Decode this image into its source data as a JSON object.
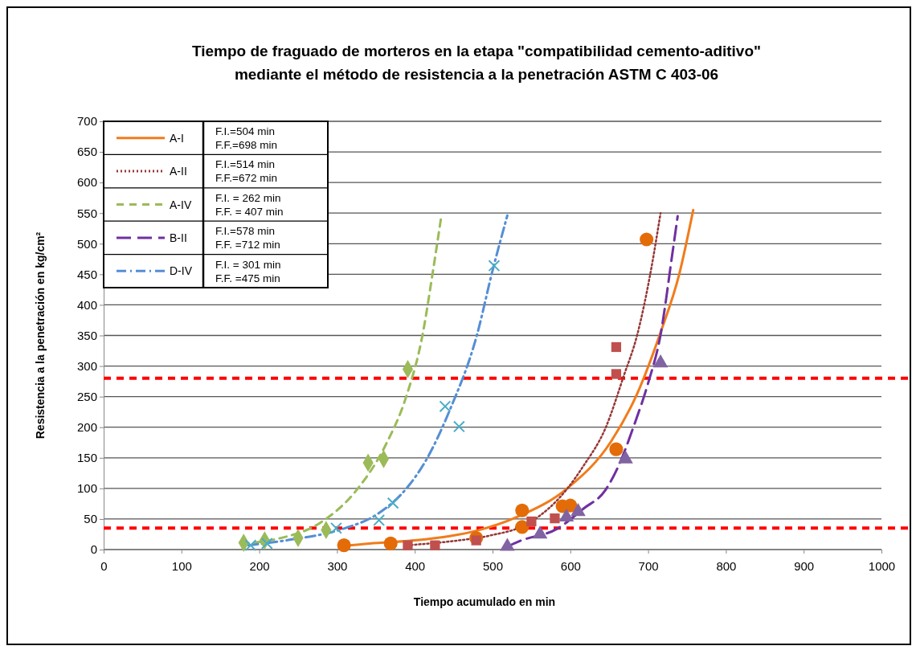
{
  "chart_data": {
    "type": "scatter",
    "title": "Tiempo de fraguado de morteros en la etapa \"compatibilidad cemento-aditivo\"\nmediante el método de resistencia a la penetración ASTM C 403-06",
    "xlabel": "Tiempo acumulado  en min",
    "ylabel": "Resistencia a la penetración en kg/cm²",
    "xlim": [
      0,
      1000
    ],
    "xticks": [
      0,
      100,
      200,
      300,
      400,
      500,
      600,
      700,
      800,
      900,
      1000
    ],
    "ylim": [
      0,
      700
    ],
    "yticks": [
      0,
      50,
      100,
      150,
      200,
      250,
      300,
      350,
      400,
      450,
      500,
      550,
      600,
      650,
      700
    ],
    "grid": "y",
    "legend": "top left",
    "annotations": [
      "F.I.=504 min\nF.F.=698 min",
      "F.I.=514 min\nF.F.=672 min",
      "F.I. = 262 min\nF.F. = 407 min",
      "F.I.=578 min\nF.F. =712 min",
      "F.I. = 301 min\nF.F. =475 min"
    ],
    "ref_lines": [
      {
        "axis": "y",
        "value": 280,
        "color": "#ff0000",
        "line_style": "dashed"
      },
      {
        "axis": "y",
        "value": 35,
        "color": "#ff0000",
        "line_style": "dashed"
      }
    ],
    "series": [
      {
        "name": "A-I",
        "type": "line",
        "line_style": "solid",
        "color": "#f07c1c",
        "x": [
          309,
          342,
          400,
          445,
          480,
          531,
          597,
          652,
          686,
          716,
          740,
          758
        ],
        "values": [
          6,
          10,
          15,
          22,
          31,
          53,
          101,
          176,
          255,
          355,
          450,
          555
        ]
      },
      {
        "name": "A-II",
        "type": "line",
        "line_style": "dotted",
        "color": "#953735",
        "x": [
          390,
          450,
          497,
          549,
          597,
          617,
          645,
          669,
          686,
          703,
          716
        ],
        "values": [
          7,
          14,
          23,
          45,
          101,
          137,
          198,
          285,
          351,
          452,
          550
        ]
      },
      {
        "name": "A-IV",
        "type": "line",
        "line_style": "dashed",
        "color": "#9bbb59",
        "x": [
          177,
          225,
          280,
          325,
          363,
          389,
          410,
          423,
          434
        ],
        "values": [
          10,
          18,
          45,
          97,
          172,
          250,
          351,
          452,
          544
        ]
      },
      {
        "name": "B-II",
        "type": "line",
        "line_style": "longdash",
        "color": "#7030a0",
        "x": [
          519,
          535,
          583,
          617,
          645,
          662,
          683,
          700,
          716,
          731,
          738
        ],
        "values": [
          5,
          14,
          34,
          67,
          97,
          137,
          207,
          272,
          351,
          482,
          545
        ]
      },
      {
        "name": "D-IV",
        "type": "line",
        "line_style": "dashdot",
        "color": "#558ed5",
        "x": [
          186,
          239,
          308,
          352,
          390,
          414,
          445,
          480,
          500,
          519
        ],
        "values": [
          7,
          16,
          34,
          58,
          101,
          145,
          228,
          351,
          456,
          546
        ]
      },
      {
        "marker": "circle",
        "color": "#e36c09",
        "x": [
          309,
          369,
          479,
          538,
          538,
          590,
          600,
          659,
          698
        ],
        "values": [
          7,
          10,
          19,
          64,
          37,
          71,
          72,
          164,
          507
        ]
      },
      {
        "marker": "square",
        "color": "#c0504d",
        "x": [
          391,
          426,
          479,
          550,
          580,
          659,
          659
        ],
        "values": [
          7,
          7,
          15,
          46,
          51,
          331,
          287
        ]
      },
      {
        "marker": "diamond",
        "color": "#9bbb59",
        "x": [
          180,
          207,
          250,
          286,
          340,
          360,
          391
        ],
        "values": [
          11,
          15,
          19,
          32,
          142,
          148,
          295
        ]
      },
      {
        "marker": "triangle",
        "color": "#8064a2",
        "x": [
          519,
          561,
          595,
          610,
          671,
          716
        ],
        "values": [
          5,
          25,
          53,
          62,
          148,
          305
        ]
      },
      {
        "marker": "cross",
        "color": "#4bacc6",
        "x": [
          189,
          210,
          299,
          354,
          372,
          439,
          457,
          502
        ],
        "values": [
          7,
          10,
          35,
          48,
          76,
          234,
          201,
          464
        ]
      }
    ]
  }
}
